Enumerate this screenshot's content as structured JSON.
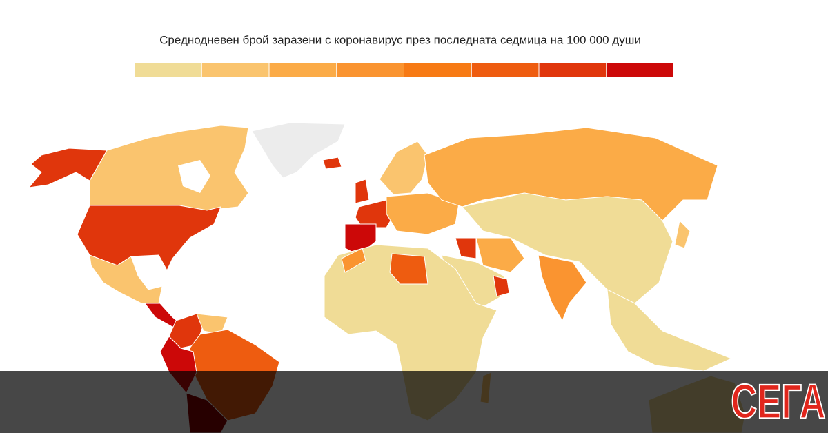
{
  "title": "Среднодневен брой заразени с коронавирус през последната седмица на 100 000 души",
  "legend": {
    "colors": [
      "#f0dc96",
      "#fac46e",
      "#fbab47",
      "#fa9430",
      "#f77a14",
      "#ee5c10",
      "#e0360c",
      "#cc0808"
    ]
  },
  "logo": "СЕГА"
}
